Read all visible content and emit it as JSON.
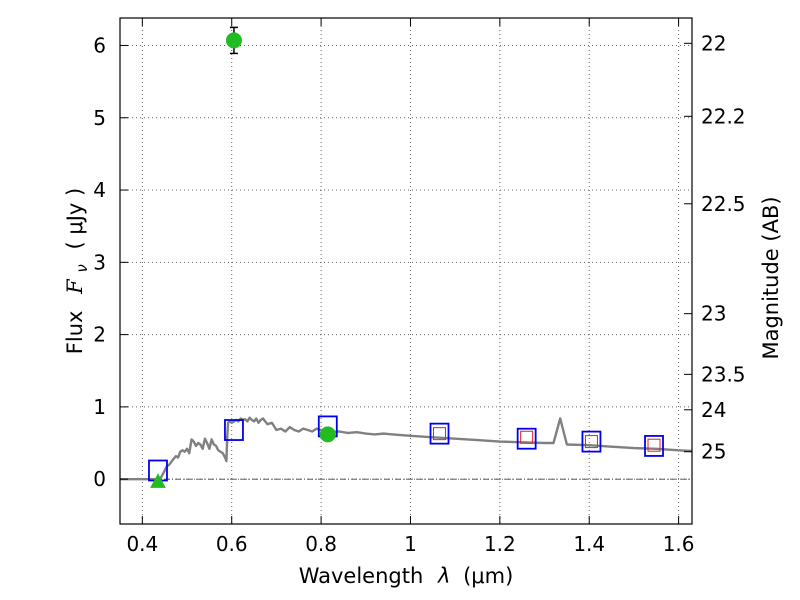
{
  "chart_data": {
    "type": "scatter",
    "xlabel_prefix": "Wavelength",
    "xlabel_symbol": "λ",
    "xlabel_unit": "(μm)",
    "ylabel_prefix": "Flux",
    "ylabel_symbol": "F",
    "ylabel_subscript": "ν",
    "ylabel_unit": "( μJy )",
    "y2label": "Magnitude (AB)",
    "xlim": [
      0.35,
      1.63
    ],
    "ylim": [
      -0.62,
      6.38
    ],
    "grid": true,
    "xticks": [
      0.4,
      0.6,
      0.8,
      1.0,
      1.2,
      1.4,
      1.6
    ],
    "xtick_labels": [
      "0.4",
      "0.6",
      "0.8",
      "1",
      "1.2",
      "1.4",
      "1.6"
    ],
    "yticks": [
      0,
      1,
      2,
      3,
      4,
      5,
      6
    ],
    "ytick_labels": [
      "0",
      "1",
      "2",
      "3",
      "4",
      "5",
      "6"
    ],
    "y2ticks": [
      {
        "flux": 6.03,
        "label": "22"
      },
      {
        "flux": 5.02,
        "label": "22.2"
      },
      {
        "flux": 3.81,
        "label": "22.5"
      },
      {
        "flux": 2.29,
        "label": "23"
      },
      {
        "flux": 1.45,
        "label": "23.5"
      },
      {
        "flux": 0.96,
        "label": "24"
      },
      {
        "flux": 0.38,
        "label": "25"
      }
    ],
    "colors": {
      "model": "#808080",
      "observed": "#22bb22",
      "model_phot": "#0000ee",
      "model_phot_inner": "#dd2222",
      "grid": "#666666"
    },
    "series": [
      {
        "name": "model_sed",
        "style": "line",
        "x": [
          0.35,
          0.44,
          0.455,
          0.46,
          0.47,
          0.475,
          0.48,
          0.485,
          0.49,
          0.495,
          0.5,
          0.505,
          0.51,
          0.515,
          0.52,
          0.525,
          0.53,
          0.535,
          0.54,
          0.545,
          0.55,
          0.555,
          0.56,
          0.565,
          0.57,
          0.575,
          0.58,
          0.585,
          0.588,
          0.59,
          0.592,
          0.595,
          0.6,
          0.605,
          0.61,
          0.615,
          0.62,
          0.625,
          0.63,
          0.635,
          0.64,
          0.645,
          0.65,
          0.655,
          0.66,
          0.665,
          0.67,
          0.675,
          0.68,
          0.69,
          0.7,
          0.71,
          0.72,
          0.73,
          0.74,
          0.75,
          0.76,
          0.77,
          0.78,
          0.79,
          0.8,
          0.82,
          0.84,
          0.86,
          0.88,
          0.9,
          0.92,
          0.94,
          0.96,
          1.0,
          1.05,
          1.1,
          1.15,
          1.2,
          1.25,
          1.3,
          1.32,
          1.335,
          1.35,
          1.4,
          1.45,
          1.5,
          1.55,
          1.6,
          1.63
        ],
        "y": [
          0.0,
          0.0,
          0.18,
          0.2,
          0.28,
          0.32,
          0.3,
          0.38,
          0.4,
          0.38,
          0.42,
          0.36,
          0.55,
          0.52,
          0.46,
          0.5,
          0.48,
          0.42,
          0.56,
          0.5,
          0.42,
          0.55,
          0.48,
          0.46,
          0.4,
          0.38,
          0.36,
          0.3,
          0.25,
          0.6,
          0.78,
          0.8,
          0.78,
          0.8,
          0.82,
          0.8,
          0.84,
          0.82,
          0.83,
          0.8,
          0.85,
          0.82,
          0.8,
          0.84,
          0.78,
          0.82,
          0.84,
          0.8,
          0.76,
          0.78,
          0.68,
          0.7,
          0.66,
          0.72,
          0.68,
          0.66,
          0.7,
          0.68,
          0.66,
          0.7,
          0.68,
          0.65,
          0.66,
          0.64,
          0.65,
          0.63,
          0.62,
          0.63,
          0.62,
          0.6,
          0.58,
          0.56,
          0.54,
          0.52,
          0.51,
          0.5,
          0.5,
          0.84,
          0.48,
          0.47,
          0.45,
          0.43,
          0.42,
          0.4,
          0.39
        ]
      },
      {
        "name": "observed_flux",
        "style": "points_with_errors",
        "x": [
          0.605,
          0.815
        ],
        "y": [
          6.07,
          0.62
        ],
        "yerr": [
          0.18,
          0.05
        ]
      },
      {
        "name": "upper_limit",
        "style": "triangle",
        "x": [
          0.435
        ],
        "y": [
          -0.03
        ],
        "yerr": [
          0.03
        ]
      },
      {
        "name": "model_photometry",
        "style": "open_square",
        "x": [
          0.435,
          0.605,
          0.815,
          1.065,
          1.26,
          1.405,
          1.545
        ],
        "y": [
          0.12,
          0.68,
          0.73,
          0.63,
          0.56,
          0.52,
          0.46
        ]
      },
      {
        "name": "observed_model_photometry",
        "style": "small_open_square",
        "x": [
          1.065,
          1.26,
          1.405,
          1.545
        ],
        "y": [
          0.63,
          0.58,
          0.52,
          0.47
        ]
      }
    ]
  }
}
